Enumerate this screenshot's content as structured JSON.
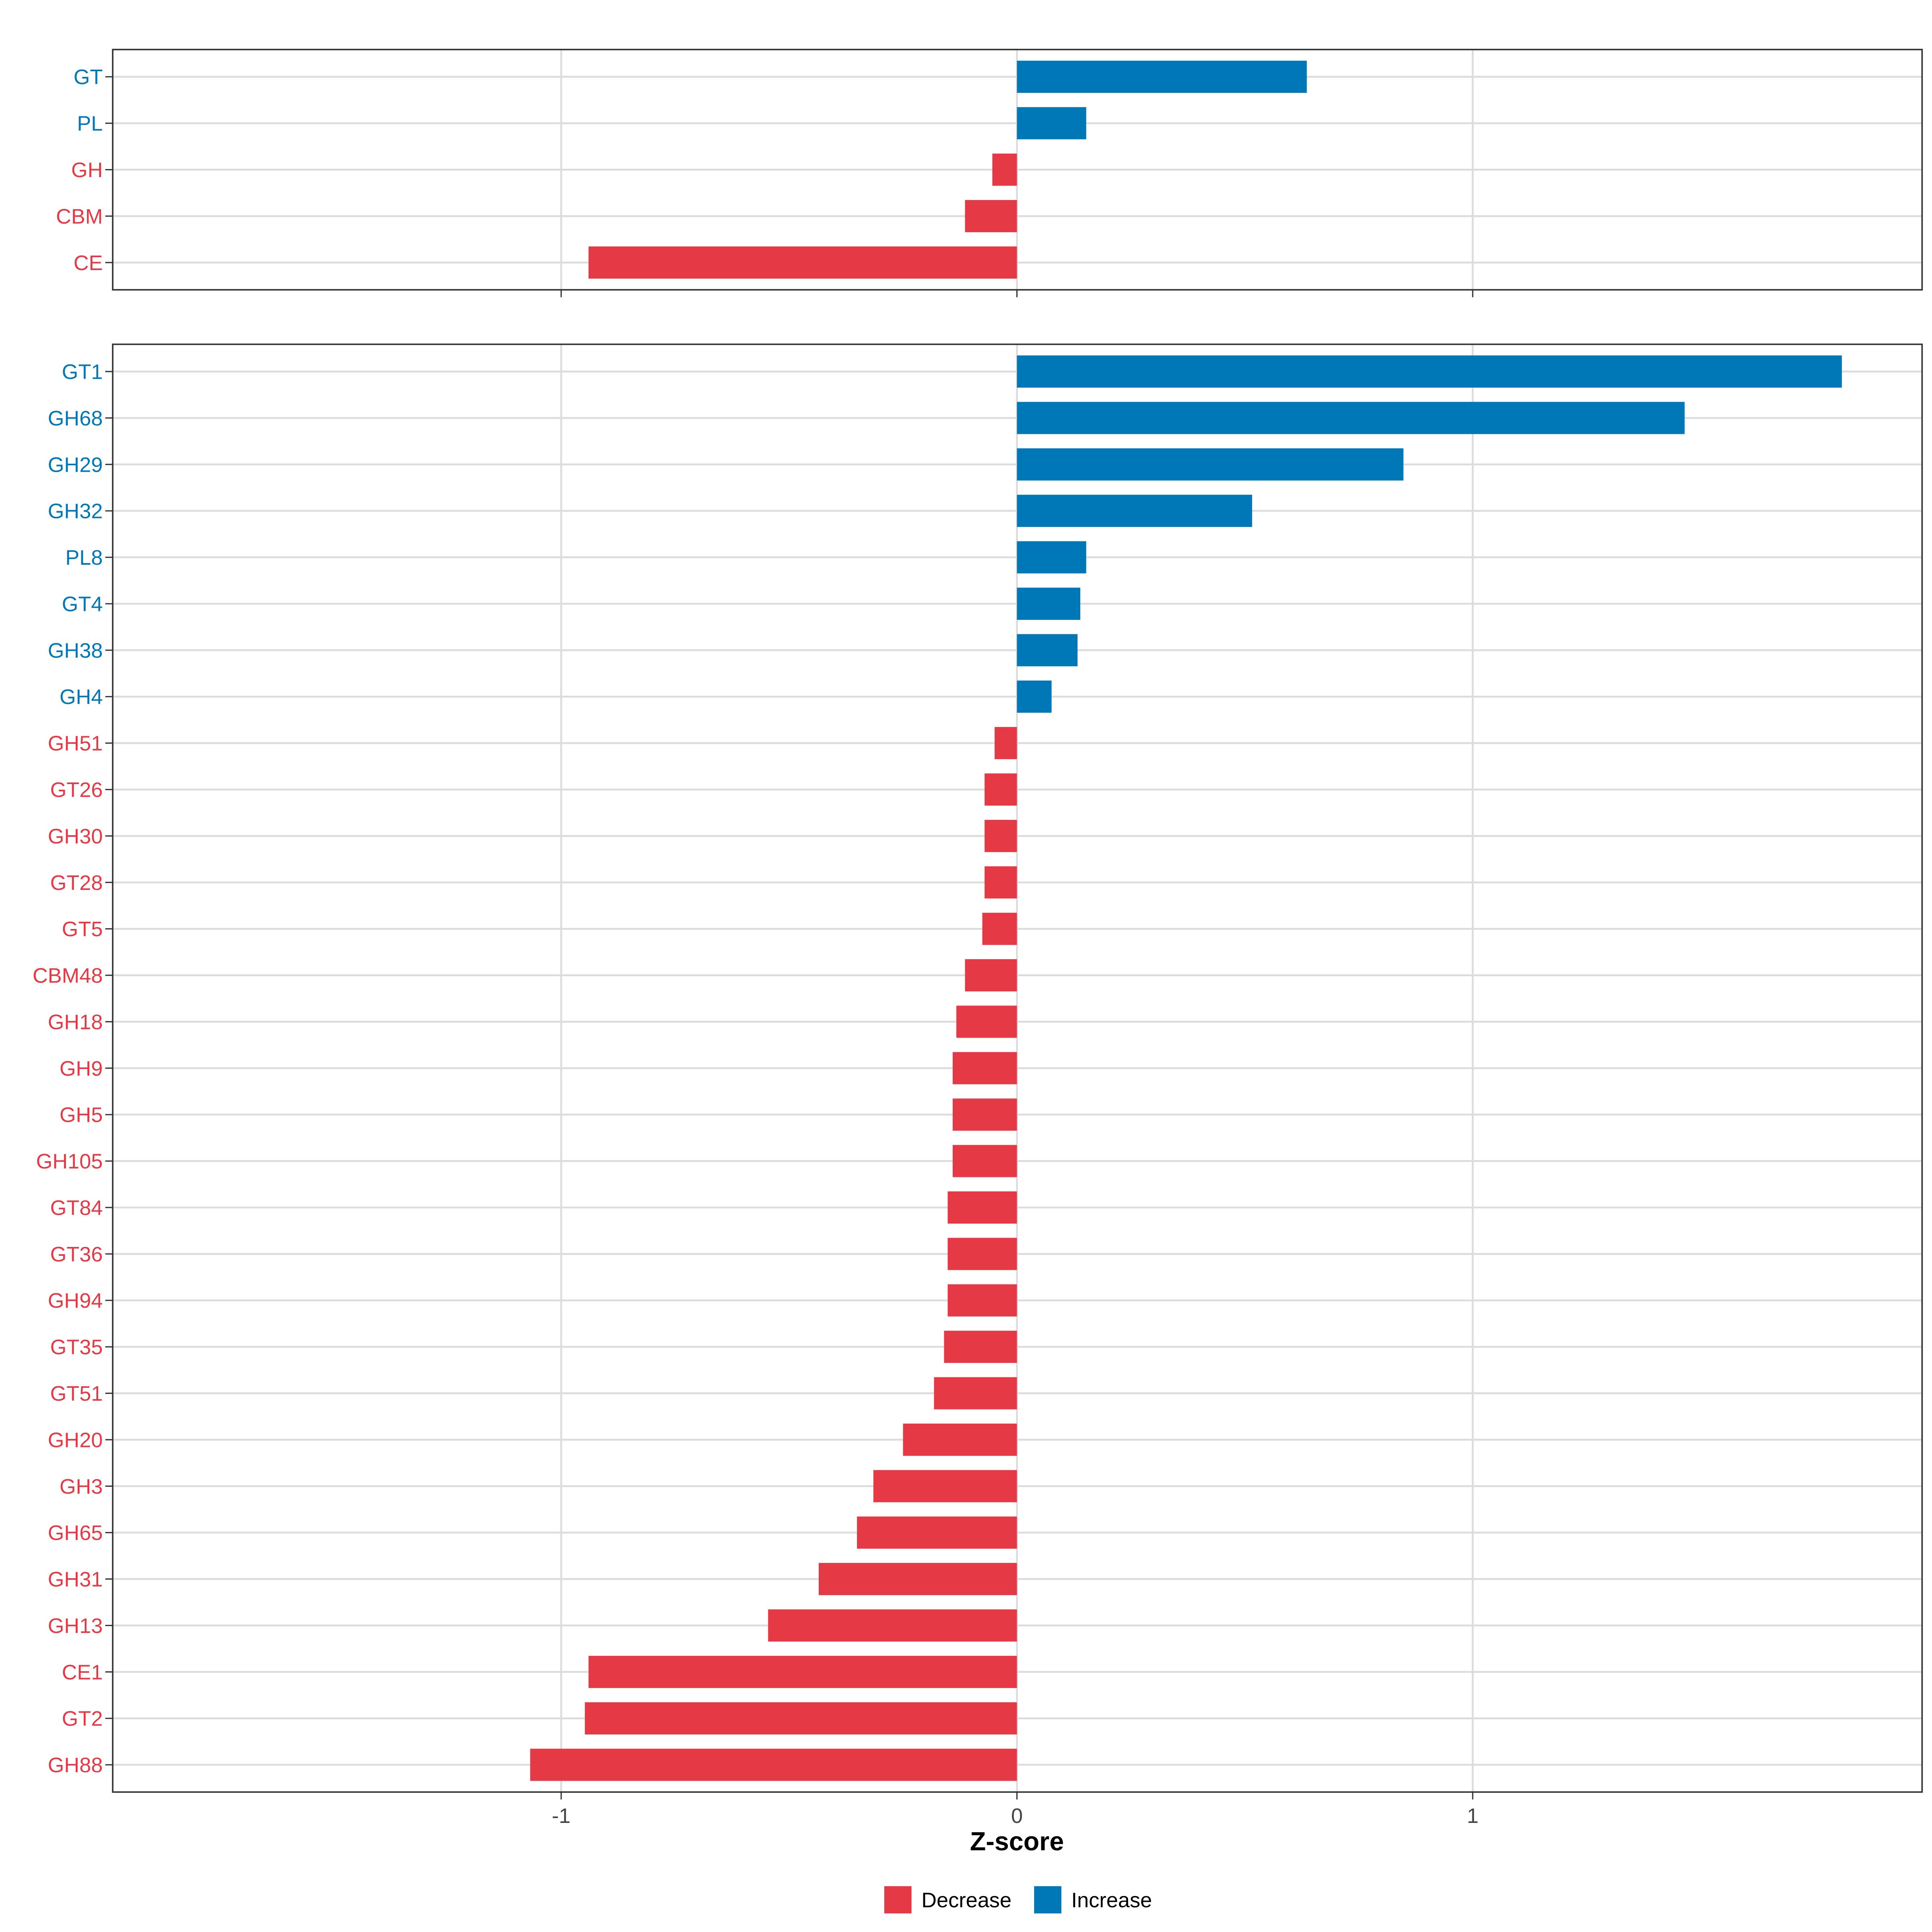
{
  "chart_data": [
    {
      "type": "bar",
      "orientation": "horizontal",
      "panel": "top",
      "categories": [
        "GT",
        "PL",
        "GH",
        "CBM",
        "CE"
      ],
      "values": [
        0.636,
        0.152,
        -0.054,
        -0.114,
        -0.94
      ],
      "xlim": [
        -1.984,
        1.986
      ],
      "grid": true
    },
    {
      "type": "bar",
      "orientation": "horizontal",
      "panel": "bottom",
      "categories": [
        "GT1",
        "GH68",
        "GH29",
        "GH32",
        "PL8",
        "GT4",
        "GH38",
        "GH4",
        "GH51",
        "GT26",
        "GH30",
        "GT28",
        "GT5",
        "CBM48",
        "GH18",
        "GH9",
        "GH5",
        "GH105",
        "GT84",
        "GT36",
        "GH94",
        "GT35",
        "GT51",
        "GH20",
        "GH3",
        "GH65",
        "GH31",
        "GH13",
        "CE1",
        "GT2",
        "GH88"
      ],
      "values": [
        1.81,
        1.465,
        0.848,
        0.516,
        0.152,
        0.139,
        0.133,
        0.076,
        -0.049,
        -0.071,
        -0.071,
        -0.071,
        -0.076,
        -0.114,
        -0.133,
        -0.141,
        -0.141,
        -0.141,
        -0.152,
        -0.152,
        -0.152,
        -0.16,
        -0.182,
        -0.25,
        -0.315,
        -0.351,
        -0.435,
        -0.546,
        -0.94,
        -0.948,
        -1.068
      ],
      "xlim": [
        -1.984,
        1.986
      ],
      "xticks": [
        -1,
        0,
        1
      ],
      "xtick_labels": [
        "-1",
        "0",
        "1"
      ],
      "xlabel": "Z-score",
      "grid": true
    }
  ],
  "legend": {
    "placement": "bottom",
    "items": [
      {
        "label": "Decrease",
        "color": "#E63946"
      },
      {
        "label": "Increase",
        "color": "#0077B6"
      }
    ]
  },
  "colors": {
    "decrease": "#E63946",
    "increase": "#0077B6"
  }
}
